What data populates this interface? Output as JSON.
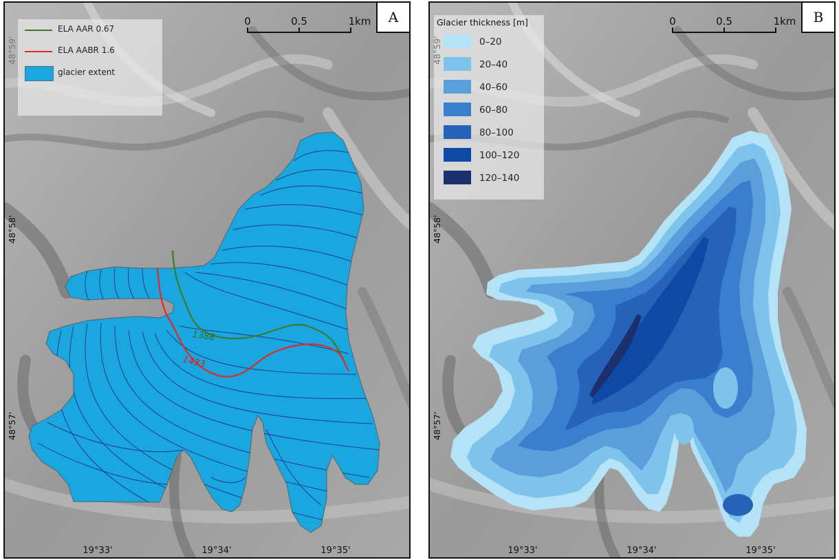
{
  "panels": {
    "a": {
      "letter": "A",
      "legend": [
        {
          "label": "ELA AAR 0.67",
          "kind": "line",
          "color": "#3f7a2a"
        },
        {
          "label": "ELA AABR 1.6",
          "kind": "line",
          "color": "#e02a2a"
        },
        {
          "label": "glacier extent",
          "kind": "patch",
          "color": "#1aa7df"
        }
      ],
      "ela_labels": {
        "aar": "1388",
        "aabr": "1433"
      }
    },
    "b": {
      "letter": "B",
      "legend_title": "Glacier thickness [m]",
      "legend": [
        {
          "label": "0–20",
          "color": "#b4e3f7"
        },
        {
          "label": "20–40",
          "color": "#7ec3ec"
        },
        {
          "label": "40–60",
          "color": "#5a9edc"
        },
        {
          "label": "60–80",
          "color": "#3a7fce"
        },
        {
          "label": "80–100",
          "color": "#2463b8"
        },
        {
          "label": "100–120",
          "color": "#0f49a6"
        },
        {
          "label": "120–140",
          "color": "#1c2f6e"
        }
      ]
    }
  },
  "scalebar": {
    "labels": [
      "0",
      "0.5",
      "1km"
    ]
  },
  "coords": {
    "lon": [
      "19°33'",
      "19°34'",
      "19°35'"
    ],
    "lat": [
      "48°59'",
      "48°58'",
      "48°57'"
    ]
  },
  "colors": {
    "glacier": "#1aa7df",
    "contour": "#203a8a",
    "outline": "#4a6f7e"
  }
}
